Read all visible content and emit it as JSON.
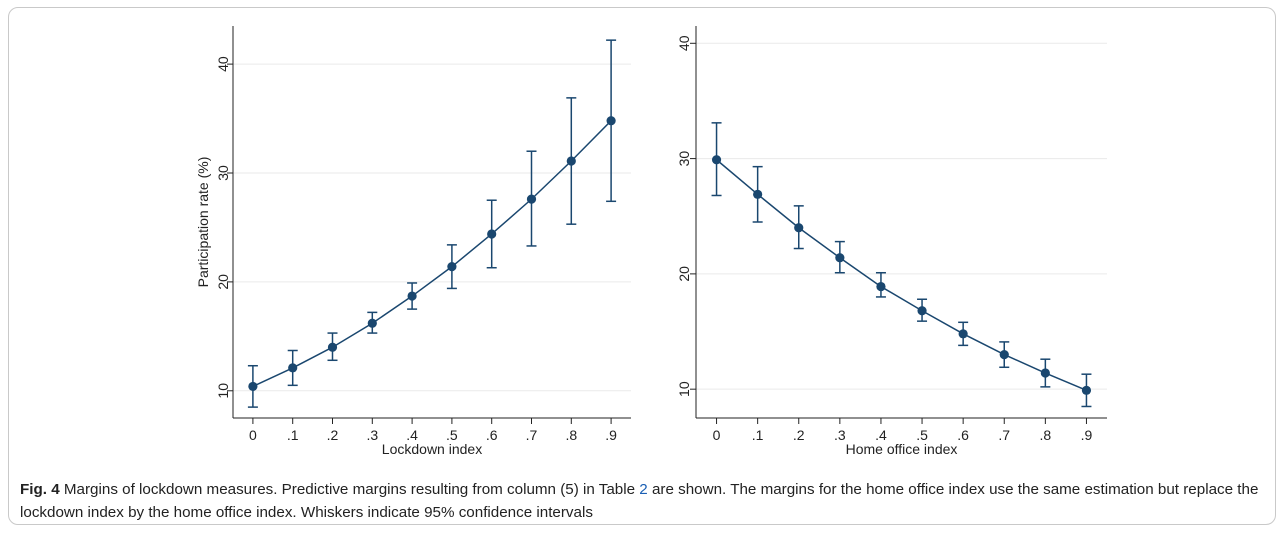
{
  "colors": {
    "series": "#1a476f",
    "grid": "#eaeaea",
    "axis": "#222222",
    "link": "#1a5fb4"
  },
  "chart_data": [
    {
      "type": "line",
      "xlabel": "Lockdown index",
      "ylabel": "Participation rate (%)",
      "x": [
        0,
        0.1,
        0.2,
        0.3,
        0.4,
        0.5,
        0.6,
        0.7,
        0.8,
        0.9
      ],
      "x_tick_labels": [
        "0",
        ".1",
        ".2",
        ".3",
        ".4",
        ".5",
        ".6",
        ".7",
        ".8",
        ".9"
      ],
      "y_ticks": [
        10,
        20,
        30,
        40
      ],
      "y_tick_labels": [
        "10",
        "20",
        "30",
        "40"
      ],
      "xlim": [
        -0.05,
        0.95
      ],
      "ylim": [
        7.5,
        43.5
      ],
      "grid": true,
      "values": [
        10.4,
        12.1,
        14.0,
        16.2,
        18.7,
        21.4,
        24.4,
        27.6,
        31.1,
        34.8
      ],
      "ci_low": [
        8.5,
        10.5,
        12.8,
        15.3,
        17.5,
        19.4,
        21.3,
        23.3,
        25.3,
        27.4
      ],
      "ci_high": [
        12.3,
        13.7,
        15.3,
        17.2,
        19.9,
        23.4,
        27.5,
        32.0,
        36.9,
        42.2
      ]
    },
    {
      "type": "line",
      "xlabel": "Home office index",
      "ylabel": "",
      "x": [
        0,
        0.1,
        0.2,
        0.3,
        0.4,
        0.5,
        0.6,
        0.7,
        0.8,
        0.9
      ],
      "x_tick_labels": [
        "0",
        ".1",
        ".2",
        ".3",
        ".4",
        ".5",
        ".6",
        ".7",
        ".8",
        ".9"
      ],
      "y_ticks": [
        10,
        20,
        30,
        40
      ],
      "y_tick_labels": [
        "10",
        "20",
        "30",
        "40"
      ],
      "xlim": [
        -0.05,
        0.95
      ],
      "ylim": [
        7.5,
        41.5
      ],
      "grid": true,
      "values": [
        29.9,
        26.9,
        24.0,
        21.4,
        18.9,
        16.8,
        14.8,
        13.0,
        11.4,
        9.9
      ],
      "ci_low": [
        26.8,
        24.5,
        22.2,
        20.1,
        18.0,
        15.9,
        13.8,
        11.9,
        10.2,
        8.5
      ],
      "ci_high": [
        33.1,
        29.3,
        25.9,
        22.8,
        20.1,
        17.8,
        15.8,
        14.1,
        12.6,
        11.3
      ]
    }
  ],
  "caption": {
    "label": "Fig. 4",
    "text_before_ref": " Margins of lockdown measures. Predictive margins resulting from column (5) in Table ",
    "ref": "2",
    "text_after_ref": " are shown. The margins for the home office index use the same estimation but replace the lockdown index by the home office index. Whiskers indicate 95% confidence intervals"
  }
}
